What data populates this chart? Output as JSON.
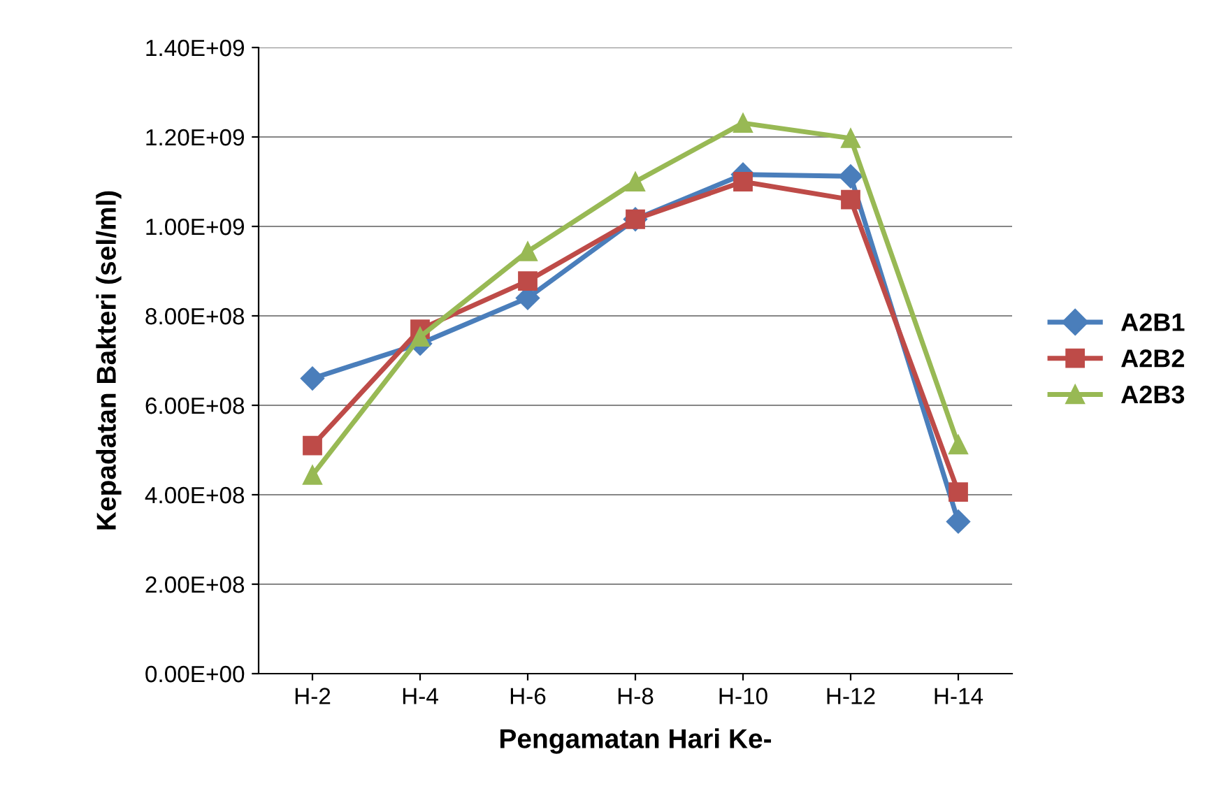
{
  "chart_data": {
    "type": "line",
    "xlabel": "Pengamatan Hari Ke-",
    "ylabel": "Kepadatan Bakteri (sel/ml)",
    "categories": [
      "H-2",
      "H-4",
      "H-6",
      "H-8",
      "H-10",
      "H-12",
      "H-14"
    ],
    "series": [
      {
        "name": "A2B1",
        "color": "#4a7ebb",
        "marker": "diamond",
        "values": [
          660000000,
          738000000,
          840000000,
          1016000000,
          1116000000,
          1112000000,
          340000000
        ]
      },
      {
        "name": "A2B2",
        "color": "#be4b48",
        "marker": "square",
        "values": [
          510000000,
          770000000,
          878000000,
          1016000000,
          1100000000,
          1060000000,
          406000000
        ]
      },
      {
        "name": "A2B3",
        "color": "#98b954",
        "marker": "triangle",
        "values": [
          444000000,
          753000000,
          944000000,
          1100000000,
          1231000000,
          1197000000,
          512000000
        ]
      }
    ],
    "ylim": [
      0,
      1400000000
    ],
    "yticks": [
      {
        "value": 0,
        "label": "0.00E+00"
      },
      {
        "value": 200000000,
        "label": "2.00E+08"
      },
      {
        "value": 400000000,
        "label": "4.00E+08"
      },
      {
        "value": 600000000,
        "label": "6.00E+08"
      },
      {
        "value": 800000000,
        "label": "8.00E+08"
      },
      {
        "value": 1000000000,
        "label": "1.00E+09"
      },
      {
        "value": 1200000000,
        "label": "1.20E+09"
      },
      {
        "value": 1400000000,
        "label": "1.40E+09"
      }
    ],
    "grid": "y",
    "legend": "right",
    "line_style": "solid"
  }
}
